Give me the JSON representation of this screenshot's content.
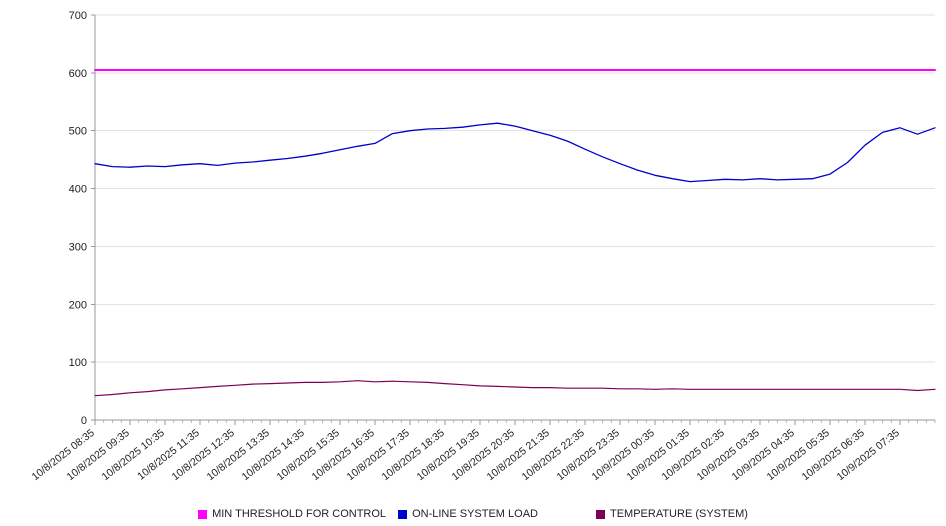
{
  "chart_data": {
    "type": "line",
    "title": "",
    "xlabel": "",
    "ylabel": "",
    "ylim": [
      0,
      700
    ],
    "yticks": [
      0,
      100,
      200,
      300,
      400,
      500,
      600,
      700
    ],
    "grid": "horizontal",
    "legend_position": "bottom",
    "x_labels": [
      "10/8/2025 08:35",
      "10/8/2025 09:35",
      "10/8/2025 10:35",
      "10/8/2025 11:35",
      "10/8/2025 12:35",
      "10/8/2025 13:35",
      "10/8/2025 14:35",
      "10/8/2025 15:35",
      "10/8/2025 16:35",
      "10/8/2025 17:35",
      "10/8/2025 18:35",
      "10/8/2025 19:35",
      "10/8/2025 20:35",
      "10/8/2025 21:35",
      "10/8/2025 22:35",
      "10/8/2025 23:35",
      "10/9/2025 00:35",
      "10/9/2025 01:35",
      "10/9/2025 02:35",
      "10/9/2025 03:35",
      "10/9/2025 04:35",
      "10/9/2025 05:35",
      "10/9/2025 06:35",
      "10/9/2025 07:35"
    ],
    "series": [
      {
        "name": "MIN THRESHOLD FOR CONTROL",
        "color": "#ff00ff",
        "width": 2,
        "values": [
          605,
          605
        ]
      },
      {
        "name": "ON-LINE SYSTEM LOAD",
        "color": "#0000cc",
        "width": 1.3,
        "values": [
          443,
          438,
          437,
          439,
          438,
          441,
          443,
          440,
          444,
          446,
          449,
          452,
          456,
          461,
          467,
          473,
          478,
          495,
          500,
          503,
          504,
          506,
          510,
          513,
          508,
          500,
          492,
          482,
          468,
          455,
          443,
          432,
          423,
          417,
          412,
          414,
          416,
          415,
          417,
          415,
          416,
          417,
          425,
          445,
          475,
          497,
          505,
          494,
          505
        ]
      },
      {
        "name": "TEMPERATURE (SYSTEM)",
        "color": "#7d0058",
        "width": 1.2,
        "values": [
          42,
          44,
          47,
          49,
          52,
          54,
          56,
          58,
          60,
          62,
          63,
          64,
          65,
          65,
          66,
          68,
          66,
          67,
          66,
          65,
          63,
          61,
          59,
          58,
          57,
          56,
          56,
          55,
          55,
          55,
          54,
          54,
          53,
          54,
          53,
          53,
          53,
          53,
          53,
          53,
          53,
          53,
          53,
          53,
          53,
          53,
          53,
          51,
          53
        ]
      }
    ],
    "colors": {
      "axis": "#9a9a9a",
      "grid": "#e2e2e2",
      "tick": "#9a9a9a",
      "tick_label": "#222222",
      "background": "#ffffff"
    }
  }
}
